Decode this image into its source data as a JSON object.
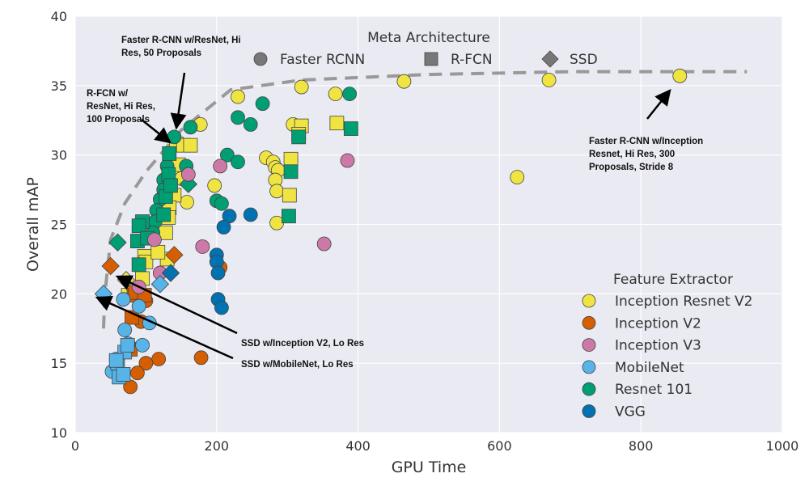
{
  "chart_data": {
    "type": "scatter",
    "xlabel": "GPU Time",
    "ylabel": "Overall mAP",
    "xlim": [
      0,
      1000
    ],
    "ylim": [
      10,
      40
    ],
    "xticks": [
      "0",
      "200",
      "400",
      "600",
      "800",
      "1000"
    ],
    "yticks": [
      "10",
      "15",
      "20",
      "25",
      "30",
      "35",
      "40"
    ],
    "grid": true,
    "background": "#eaeaf2",
    "meta_legend": {
      "title": "Meta Architecture",
      "placement": "top-center",
      "items": [
        {
          "label": "Faster RCNN",
          "marker": "circle"
        },
        {
          "label": "R-FCN",
          "marker": "square"
        },
        {
          "label": "SSD",
          "marker": "diamond"
        }
      ]
    },
    "feature_legend": {
      "title": "Feature Extractor",
      "placement": "bottom-right",
      "items": [
        {
          "label": "Inception Resnet V2",
          "color": "#f0e442"
        },
        {
          "label": "Inception V2",
          "color": "#d55e00"
        },
        {
          "label": "Inception V3",
          "color": "#cc79a7"
        },
        {
          "label": "MobileNet",
          "color": "#56b4e9"
        },
        {
          "label": "Resnet 101",
          "color": "#009e73"
        },
        {
          "label": "VGG",
          "color": "#0072b2"
        }
      ]
    },
    "frontier": [
      [
        40,
        17.5
      ],
      [
        42,
        20
      ],
      [
        50,
        23.9
      ],
      [
        70,
        26.5
      ],
      [
        100,
        28.8
      ],
      [
        150,
        31.8
      ],
      [
        220,
        34.7
      ],
      [
        320,
        35.4
      ],
      [
        500,
        35.8
      ],
      [
        700,
        36
      ],
      [
        950,
        36
      ]
    ],
    "series": [
      {
        "extractor": "Inception Resnet V2",
        "meta": "Faster RCNN",
        "points": [
          [
            855,
            35.7
          ],
          [
            670,
            35.4
          ],
          [
            465,
            35.3
          ],
          [
            320,
            34.9
          ],
          [
            368,
            34.4
          ],
          [
            230,
            34.2
          ],
          [
            177,
            32.2
          ],
          [
            308,
            32.2
          ],
          [
            625,
            28.4
          ],
          [
            270,
            29.8
          ],
          [
            280,
            29.5
          ],
          [
            283,
            29.1
          ],
          [
            287,
            28.9
          ],
          [
            283,
            28.2
          ],
          [
            285,
            27.4
          ],
          [
            285,
            25.1
          ],
          [
            197,
            27.8
          ],
          [
            158,
            26.6
          ],
          [
            150,
            28.3
          ]
        ]
      },
      {
        "extractor": "Inception Resnet V2",
        "meta": "R-FCN",
        "points": [
          [
            370,
            32.3
          ],
          [
            320,
            32.1
          ],
          [
            316,
            31.5
          ],
          [
            305,
            29.7
          ],
          [
            303,
            27.1
          ],
          [
            143,
            30.8
          ],
          [
            153,
            30.7
          ],
          [
            163,
            30.7
          ],
          [
            146,
            29.3
          ],
          [
            140,
            27.1
          ],
          [
            133,
            26.2
          ],
          [
            132,
            25.5
          ],
          [
            128,
            24.4
          ],
          [
            98,
            22.7
          ],
          [
            100,
            22.3
          ],
          [
            95,
            21.1
          ],
          [
            75,
            19.9
          ],
          [
            130,
            22.5
          ],
          [
            117,
            23.0
          ]
        ]
      },
      {
        "extractor": "Inception Resnet V2",
        "meta": "SSD",
        "points": [
          [
            72,
            21.0
          ]
        ]
      },
      {
        "extractor": "Resnet 101",
        "meta": "Faster RCNN",
        "points": [
          [
            265,
            33.7
          ],
          [
            230,
            32.7
          ],
          [
            248,
            32.2
          ],
          [
            388,
            34.4
          ],
          [
            163,
            32.0
          ],
          [
            140,
            31.3
          ],
          [
            215,
            30.0
          ],
          [
            230,
            29.5
          ],
          [
            200,
            26.7
          ],
          [
            207,
            26.5
          ],
          [
            157,
            29.2
          ],
          [
            130,
            29.2
          ],
          [
            125,
            28.2
          ],
          [
            120,
            26.8
          ],
          [
            115,
            26.0
          ],
          [
            113,
            25.2
          ],
          [
            110,
            24.4
          ],
          [
            125,
            27.5
          ]
        ]
      },
      {
        "extractor": "Resnet 101",
        "meta": "R-FCN",
        "points": [
          [
            390,
            31.9
          ],
          [
            316,
            31.3
          ],
          [
            305,
            28.8
          ],
          [
            302,
            25.6
          ],
          [
            133,
            30.1
          ],
          [
            132,
            28.6
          ],
          [
            128,
            27.0
          ],
          [
            95,
            25.2
          ],
          [
            90,
            24.9
          ],
          [
            88,
            23.8
          ],
          [
            102,
            24.0
          ],
          [
            90,
            22.1
          ],
          [
            125,
            25.7
          ],
          [
            135,
            27.8
          ]
        ]
      },
      {
        "extractor": "Resnet 101",
        "meta": "SSD",
        "points": [
          [
            160,
            27.9
          ],
          [
            60,
            23.7
          ]
        ]
      },
      {
        "extractor": "Inception V2",
        "meta": "Faster RCNN",
        "points": [
          [
            205,
            21.9
          ],
          [
            178,
            15.4
          ],
          [
            118,
            15.3
          ],
          [
            100,
            15.0
          ],
          [
            88,
            14.3
          ],
          [
            78,
            13.3
          ],
          [
            100,
            19.5
          ],
          [
            93,
            18.0
          ]
        ]
      },
      {
        "extractor": "Inception V2",
        "meta": "R-FCN",
        "points": [
          [
            80,
            18.3
          ],
          [
            83,
            19.9
          ],
          [
            85,
            20.1
          ],
          [
            98,
            19.9
          ],
          [
            78,
            16.0
          ]
        ]
      },
      {
        "extractor": "Inception V2",
        "meta": "SSD",
        "points": [
          [
            50,
            22.0
          ],
          [
            140,
            22.8
          ]
        ]
      },
      {
        "extractor": "Inception V3",
        "meta": "Faster RCNN",
        "points": [
          [
            205,
            29.2
          ],
          [
            180,
            23.4
          ],
          [
            352,
            23.6
          ],
          [
            385,
            29.6
          ],
          [
            112,
            23.9
          ],
          [
            90,
            20.5
          ],
          [
            120,
            21.5
          ],
          [
            160,
            28.6
          ]
        ]
      },
      {
        "extractor": "MobileNet",
        "meta": "Faster RCNN",
        "points": [
          [
            70,
            17.4
          ],
          [
            75,
            16.4
          ],
          [
            58,
            15.3
          ],
          [
            52,
            14.4
          ],
          [
            68,
            19.6
          ],
          [
            90,
            19.1
          ],
          [
            105,
            17.9
          ],
          [
            95,
            16.3
          ]
        ]
      },
      {
        "extractor": "MobileNet",
        "meta": "R-FCN",
        "points": [
          [
            60,
            15.0
          ],
          [
            70,
            15.8
          ],
          [
            62,
            14.0
          ],
          [
            74,
            16.3
          ],
          [
            58,
            15.2
          ],
          [
            68,
            14.2
          ]
        ]
      },
      {
        "extractor": "MobileNet",
        "meta": "SSD",
        "points": [
          [
            40,
            20.0
          ],
          [
            120,
            20.7
          ]
        ]
      },
      {
        "extractor": "VGG",
        "meta": "Faster RCNN",
        "points": [
          [
            218,
            25.6
          ],
          [
            248,
            25.7
          ],
          [
            210,
            24.8
          ],
          [
            200,
            22.8
          ],
          [
            200,
            22.3
          ],
          [
            202,
            21.5
          ],
          [
            202,
            19.6
          ],
          [
            207,
            19.0
          ]
        ]
      },
      {
        "extractor": "VGG",
        "meta": "SSD",
        "points": [
          [
            135,
            21.5
          ]
        ]
      }
    ],
    "annotations": [
      {
        "lines": [
          "Faster R-CNN w/ResNet, Hi",
          "Res, 50 Proposals"
        ],
        "target": [
          143,
          30.8
        ]
      },
      {
        "lines": [
          "R-FCN w/",
          "ResNet, Hi Res,",
          "100 Proposals"
        ],
        "target": [
          135,
          31.0
        ]
      },
      {
        "lines": [
          "Faster R-CNN w/Inception",
          "Resnet, Hi Res, 300",
          "Proposals, Stride 8"
        ],
        "target": [
          855,
          35.7
        ]
      },
      {
        "lines": [
          "SSD w/Inception V2, Lo Res"
        ],
        "target": [
          60,
          21.3
        ]
      },
      {
        "lines": [
          "SSD w/MobileNet, Lo Res"
        ],
        "target": [
          30,
          19.8
        ]
      }
    ]
  }
}
